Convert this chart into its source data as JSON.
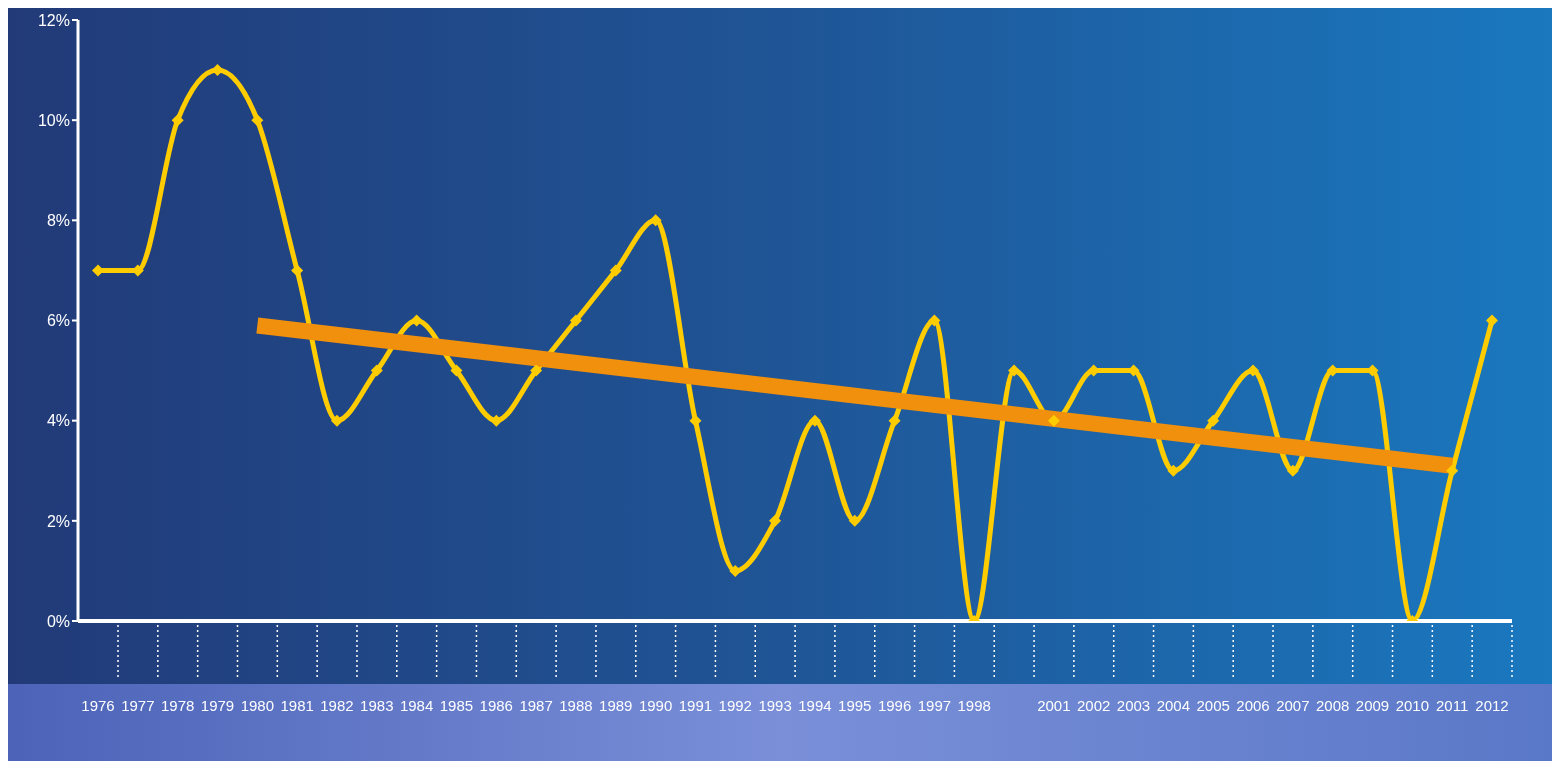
{
  "chart_data": {
    "type": "line",
    "categories": [
      "1976",
      "1977",
      "1978",
      "1979",
      "1980",
      "1981",
      "1982",
      "1983",
      "1984",
      "1985",
      "1986",
      "1987",
      "1988",
      "1989",
      "1990",
      "1991",
      "1992",
      "1993",
      "1994",
      "1995",
      "1996",
      "1997",
      "1998",
      null,
      "2001",
      "2002",
      "2003",
      "2004",
      "2005",
      "2006",
      "2007",
      "2008",
      "2009",
      "2010",
      "2011",
      "2012"
    ],
    "series": [
      {
        "color": "#ffcc00",
        "marker": "diamond",
        "values": [
          7,
          7,
          10,
          11,
          10,
          7,
          4,
          5,
          6,
          5,
          4,
          5,
          6,
          7,
          8,
          4,
          1,
          2,
          4,
          2,
          4,
          6,
          0,
          5,
          4,
          5,
          5,
          3,
          4,
          5,
          3,
          5,
          5,
          0,
          3,
          6
        ]
      },
      {
        "color": "#f0900c",
        "marker": "none",
        "values": [
          null,
          null,
          null,
          null,
          5.9,
          null,
          null,
          null,
          null,
          null,
          null,
          null,
          null,
          null,
          null,
          null,
          null,
          null,
          null,
          null,
          null,
          null,
          null,
          null,
          null,
          null,
          null,
          null,
          null,
          null,
          null,
          null,
          null,
          null,
          3.1,
          null
        ]
      }
    ],
    "ylim": [
      0,
      12
    ],
    "yticks": [
      {
        "value": 0,
        "label": "0%"
      },
      {
        "value": 2,
        "label": "2%"
      },
      {
        "value": 4,
        "label": "4%"
      },
      {
        "value": 6,
        "label": "6%"
      },
      {
        "value": 8,
        "label": "8%"
      },
      {
        "value": 10,
        "label": "10%"
      },
      {
        "value": 12,
        "label": "12%"
      }
    ],
    "grid": false,
    "line_style": "solid"
  }
}
